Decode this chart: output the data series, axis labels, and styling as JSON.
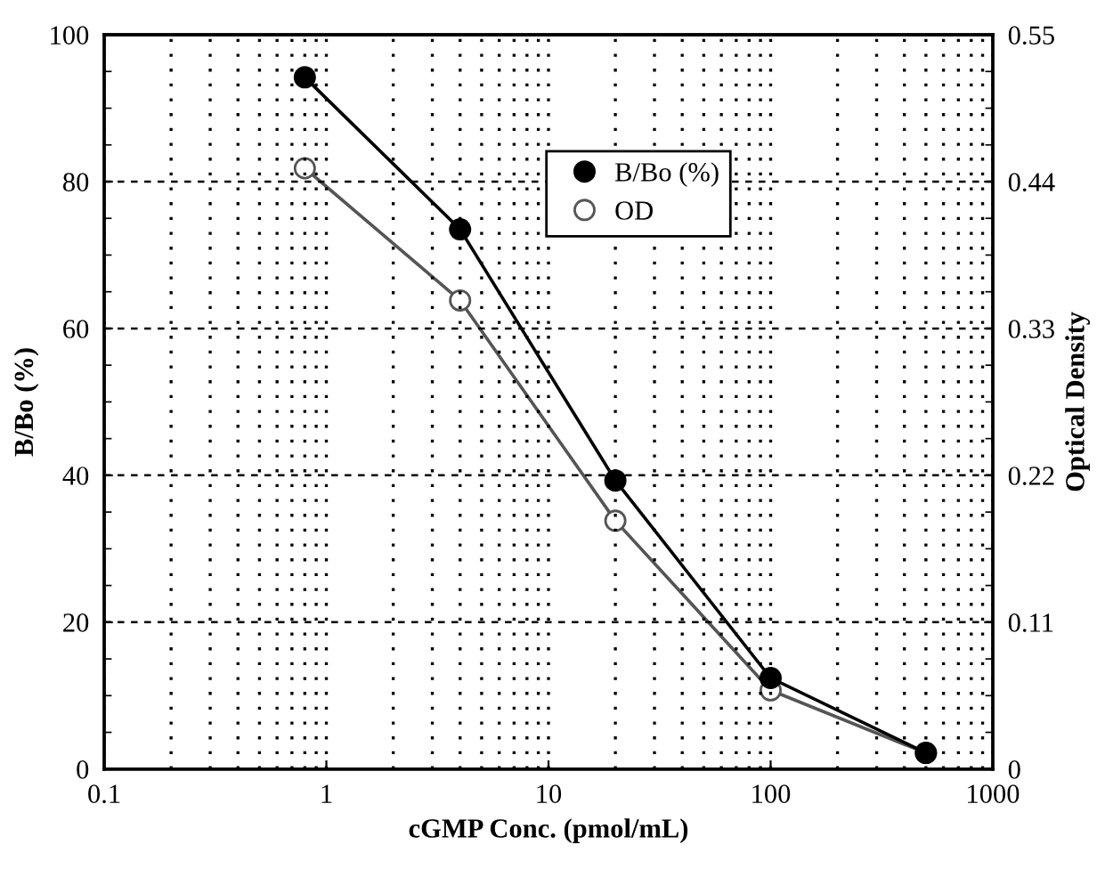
{
  "chart_data": {
    "type": "line",
    "xlabel": "cGMP Conc. (pmol/mL)",
    "ylabel": "B/Bo (%)",
    "y2label": "Optical Density",
    "x": [
      0.8,
      4,
      20,
      100,
      500
    ],
    "series": [
      {
        "name": "B/Bo (%)",
        "color": "#000000",
        "values": [
          94.2,
          73.5,
          39.3,
          12.4,
          2.2
        ],
        "marker": "circle"
      },
      {
        "name": "OD",
        "color": "#555555",
        "values": [
          0.45,
          0.351,
          0.186,
          0.059,
          0.012
        ],
        "marker": "circle",
        "axis": "y2"
      }
    ],
    "log": "x",
    "xlim": [
      0.1,
      1000
    ],
    "xticks": [
      0.1,
      1,
      10,
      100,
      1000
    ],
    "ylim": [
      0,
      100
    ],
    "yticks": [
      0,
      20,
      40,
      60,
      80,
      100
    ],
    "y2lim": [
      0,
      0.55
    ],
    "y2ticks": [
      0,
      0.11,
      0.22,
      0.33,
      0.44,
      0.55
    ],
    "grid": true,
    "legend": "top right",
    "line_style": "solid"
  }
}
